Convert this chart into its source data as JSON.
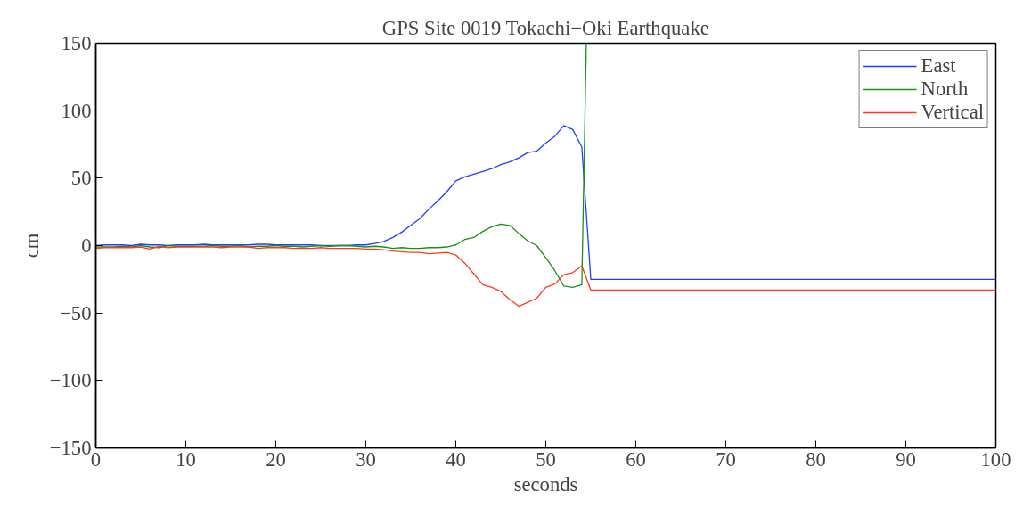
{
  "chart_data": {
    "type": "line",
    "title": "GPS Site 0019 Tokachi−Oki Earthquake",
    "xlabel": "seconds",
    "ylabel": "cm",
    "x": [
      0,
      1,
      2,
      3,
      4,
      5,
      6,
      7,
      8,
      9,
      10,
      11,
      12,
      13,
      14,
      15,
      16,
      17,
      18,
      19,
      20,
      21,
      22,
      23,
      24,
      25,
      26,
      27,
      28,
      29,
      30,
      31,
      32,
      33,
      34,
      35,
      36,
      37,
      38,
      39,
      40,
      41,
      42,
      43,
      44,
      45,
      46,
      47,
      48,
      49,
      50,
      51,
      52,
      53,
      54,
      55,
      100
    ],
    "series": [
      {
        "name": "East",
        "color": "#1f3fff",
        "values": [
          0,
          0.5,
          0.5,
          0.5,
          0,
          1,
          0.5,
          0.5,
          0,
          0.5,
          0.5,
          0.5,
          1,
          0.5,
          0.5,
          0.5,
          0.5,
          0.5,
          1,
          1,
          0.5,
          0.5,
          0.5,
          0.5,
          0.5,
          0,
          0,
          0,
          0,
          0.5,
          0.5,
          1.5,
          3,
          6,
          10,
          15,
          20,
          27,
          33,
          40,
          48,
          51,
          53,
          55,
          57,
          60,
          62,
          65,
          69,
          70,
          76,
          81,
          89,
          86,
          73,
          -25,
          -25
        ]
      },
      {
        "name": "North",
        "color": "#1a8f1a",
        "x": [
          0,
          1,
          2,
          3,
          4,
          5,
          6,
          7,
          8,
          9,
          10,
          11,
          12,
          13,
          14,
          15,
          16,
          17,
          18,
          19,
          20,
          21,
          22,
          23,
          24,
          25,
          26,
          27,
          28,
          29,
          30,
          31,
          32,
          33,
          34,
          35,
          36,
          37,
          38,
          39,
          40,
          41,
          42,
          43,
          44,
          45,
          46,
          47,
          48,
          49,
          50,
          51,
          52,
          53,
          54,
          54.5
        ],
        "values": [
          -1,
          -1,
          -1,
          -0.5,
          -1,
          0,
          -1,
          -1.5,
          0,
          -0.5,
          -0.5,
          -0.5,
          -0.5,
          0,
          -0.5,
          -0.5,
          0,
          -1,
          -0.5,
          -0.5,
          0,
          -0.5,
          -0.5,
          -1,
          -0.5,
          0,
          -0.5,
          0,
          0,
          -0.5,
          -1,
          -0.5,
          -1,
          -2,
          -1.5,
          -2,
          -2,
          -1.5,
          -1.5,
          -1,
          0.5,
          4.5,
          6,
          10.5,
          14,
          16,
          15,
          9,
          3.5,
          0,
          -9,
          -18.5,
          -30,
          -31,
          -29,
          150
        ]
      },
      {
        "name": "Vertical",
        "color": "#ff3a1a",
        "values": [
          -2,
          -1.5,
          -1.5,
          -1.5,
          -1.5,
          -1,
          -2.5,
          -0.5,
          -1.5,
          -1,
          -1,
          -1,
          -1,
          -1,
          -1.5,
          -1,
          -1,
          -1,
          -2,
          -1.5,
          -1.5,
          -1.5,
          -2,
          -2,
          -2,
          -1.5,
          -2,
          -2,
          -2,
          -2,
          -2.5,
          -2.5,
          -3,
          -4,
          -4.5,
          -5,
          -5,
          -6,
          -5.5,
          -5,
          -7,
          -13,
          -21,
          -29,
          -31,
          -34,
          -40,
          -45,
          -42,
          -39,
          -31,
          -28.5,
          -21.5,
          -20,
          -15,
          -33,
          -33
        ]
      }
    ],
    "xlim": [
      0,
      100
    ],
    "xticks": [
      0,
      10,
      20,
      30,
      40,
      50,
      60,
      70,
      80,
      90,
      100
    ],
    "ylim": [
      -150,
      150
    ],
    "yticks": [
      -150,
      -100,
      -50,
      0,
      50,
      100,
      150
    ],
    "legend": "top right",
    "grid": false,
    "marker": "none",
    "line_style": "solid"
  }
}
